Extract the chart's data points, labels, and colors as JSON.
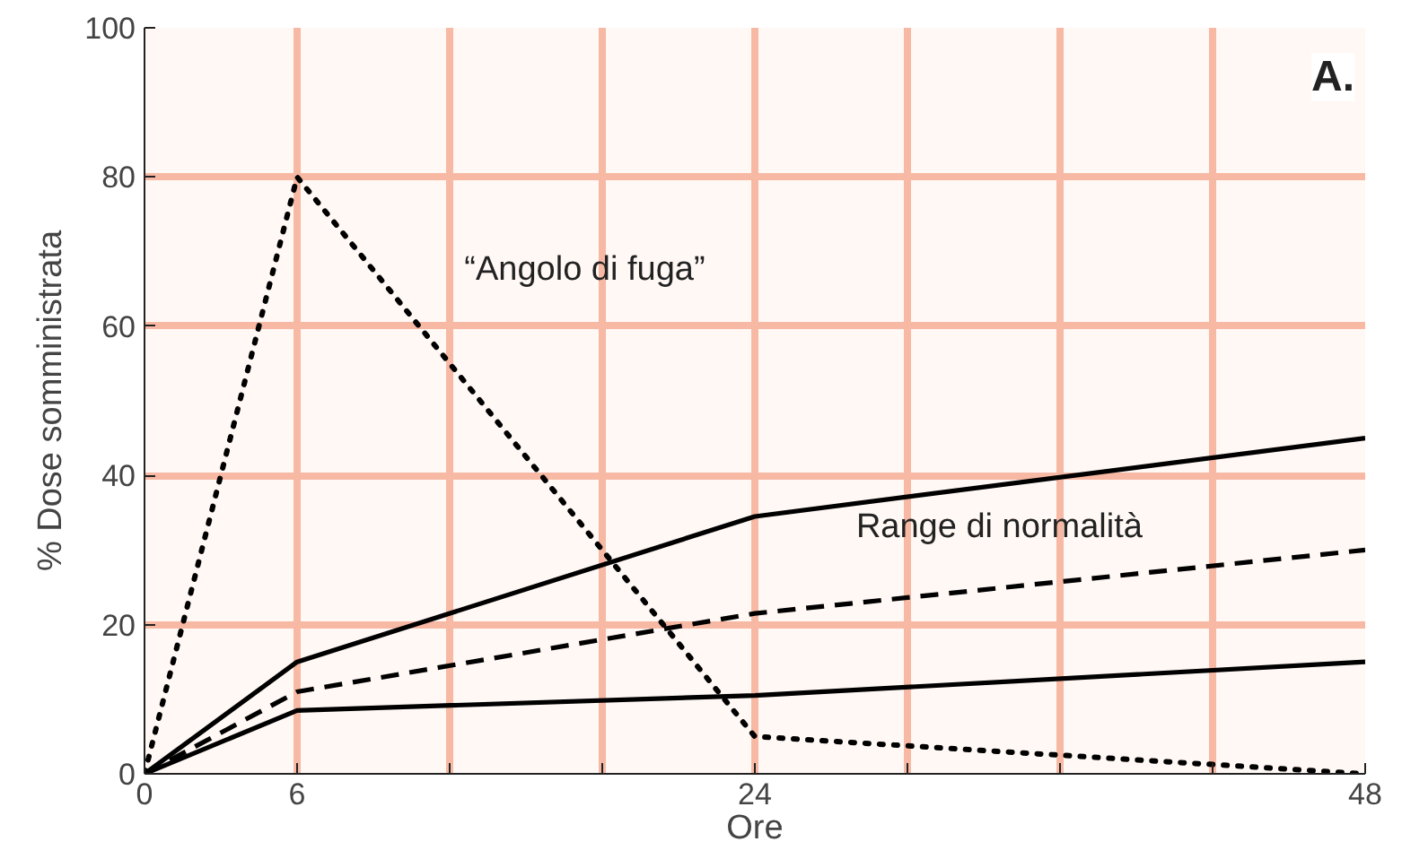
{
  "chart_data": {
    "type": "line",
    "xlabel": "Ore",
    "ylabel": "% Dose somministrata",
    "x": [
      0,
      6,
      24,
      48
    ],
    "series": [
      {
        "color": "#000000",
        "line_style": "dotted",
        "values": [
          0,
          80,
          5,
          0
        ]
      },
      {
        "color": "#000000",
        "line_style": "solid",
        "values": [
          0,
          15,
          34.5,
          45
        ]
      },
      {
        "color": "#000000",
        "line_style": "dashed",
        "values": [
          0,
          11,
          21.5,
          30
        ]
      },
      {
        "color": "#000000",
        "line_style": "solid",
        "values": [
          0,
          8.5,
          10.5,
          15
        ]
      }
    ],
    "xlim": [
      0,
      48
    ],
    "ylim": [
      0,
      100
    ],
    "xticks": [
      0,
      6,
      {
        "value": 12,
        "label": null
      },
      {
        "value": 18,
        "label": null
      },
      24,
      {
        "value": 30,
        "label": null
      },
      {
        "value": 36,
        "label": null
      },
      {
        "value": 42,
        "label": null
      },
      48
    ],
    "yticks": [
      0,
      20,
      40,
      60,
      80,
      100
    ],
    "grid": true,
    "marker": "none",
    "annotations": [
      "“Angolo di fuga”",
      "Range di normalità",
      "A."
    ]
  }
}
